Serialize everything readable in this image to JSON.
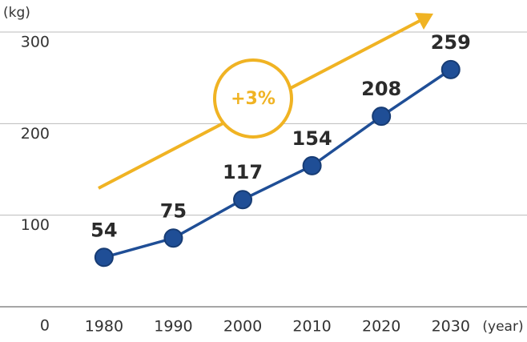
{
  "chart_data": {
    "type": "line",
    "y_unit": "(kg)",
    "x_unit": "(year)",
    "annotation": "+3%",
    "x": [
      1980,
      1990,
      2000,
      2010,
      2020,
      2030
    ],
    "series": [
      {
        "color": "#1f4e96",
        "values": [
          54,
          75,
          117,
          154,
          208,
          259
        ]
      }
    ],
    "xlim": [
      1965,
      2041
    ],
    "xticks": [
      1980,
      1990,
      2000,
      2010,
      2020,
      2030
    ],
    "ylim": [
      0,
      300
    ],
    "yticks": [
      0,
      100,
      200,
      300
    ],
    "grid": true,
    "annotation_color": "#f0b323"
  }
}
